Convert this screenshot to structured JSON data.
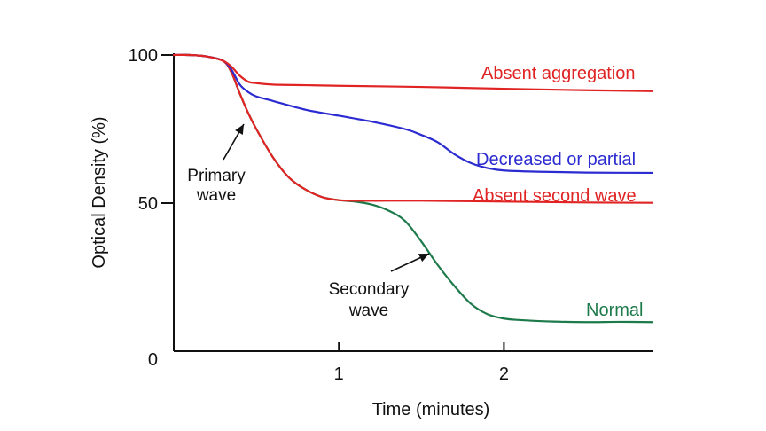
{
  "chart_data": {
    "type": "line",
    "title": "",
    "xlabel": "Time (minutes)",
    "ylabel": "Optical Density (%)",
    "xlim": [
      0,
      2.9
    ],
    "ylim": [
      0,
      100
    ],
    "x_ticks": [
      {
        "value": 1,
        "label": "1"
      },
      {
        "value": 2,
        "label": "2"
      }
    ],
    "y_ticks": [
      {
        "value": 0,
        "label": "0"
      },
      {
        "value": 50,
        "label": "50"
      },
      {
        "value": 100,
        "label": "100"
      }
    ],
    "grid": false,
    "legend": "none",
    "series": [
      {
        "name": "Absent aggregation",
        "color": "#e02424",
        "x": [
          0,
          0.1,
          0.2,
          0.3,
          0.35,
          0.4,
          0.45,
          0.5,
          0.6,
          0.8,
          1.0,
          1.5,
          2.0,
          2.5,
          2.9
        ],
        "y": [
          100,
          100,
          99.5,
          98,
          96,
          93,
          91,
          90.5,
          90,
          89.8,
          89.6,
          89.2,
          88.6,
          88.1,
          87.8
        ]
      },
      {
        "name": "Decreased or partial",
        "color": "#2b2bd1",
        "x": [
          0,
          0.1,
          0.2,
          0.3,
          0.35,
          0.4,
          0.45,
          0.5,
          0.6,
          0.8,
          1.0,
          1.2,
          1.4,
          1.5,
          1.6,
          1.7,
          1.8,
          1.9,
          2.0,
          2.2,
          2.5,
          2.9
        ],
        "y": [
          100,
          100,
          99.5,
          98,
          95,
          90,
          87.5,
          86,
          84.5,
          81.5,
          79.5,
          77.5,
          75,
          73,
          70.5,
          66.5,
          63.5,
          61.8,
          61,
          60.6,
          60.3,
          60.2
        ]
      },
      {
        "name": "Absent second wave",
        "color": "#e02424",
        "x": [
          0,
          0.1,
          0.2,
          0.3,
          0.35,
          0.4,
          0.45,
          0.5,
          0.6,
          0.7,
          0.8,
          0.9,
          1.0,
          1.1,
          1.3,
          1.5,
          2.0,
          2.5,
          2.9
        ],
        "y": [
          100,
          100,
          99.5,
          98,
          94,
          87,
          80.5,
          75,
          65.5,
          58.5,
          54.5,
          52,
          51,
          50.8,
          50.8,
          50.8,
          50.5,
          50.2,
          50.1
        ]
      },
      {
        "name": "Normal",
        "color": "#1d7a4a",
        "x": [
          0,
          0.1,
          0.2,
          0.3,
          0.35,
          0.4,
          0.45,
          0.5,
          0.6,
          0.7,
          0.8,
          0.9,
          1.0,
          1.1,
          1.2,
          1.3,
          1.4,
          1.5,
          1.6,
          1.7,
          1.8,
          1.9,
          2.0,
          2.1,
          2.3,
          2.5,
          2.7,
          2.9
        ],
        "y": [
          100,
          100,
          99.5,
          98,
          94,
          87,
          80.5,
          75,
          65.5,
          58.5,
          54.5,
          52,
          51,
          50.5,
          49.5,
          47.5,
          44,
          37,
          29,
          22,
          16,
          12.5,
          11,
          10.5,
          10,
          9.8,
          9.9,
          9.8
        ]
      }
    ],
    "annotations": [
      {
        "text": "Absent aggregation",
        "color": "#e02424"
      },
      {
        "text": "Decreased or partial",
        "color": "#2b2bd1"
      },
      {
        "text": "Absent second wave",
        "color": "#e02424"
      },
      {
        "text": "Normal",
        "color": "#1d7a4a"
      },
      {
        "text": "Primary",
        "color": "#111111"
      },
      {
        "text": "wave",
        "color": "#111111"
      },
      {
        "text": "Secondary",
        "color": "#111111"
      },
      {
        "text": "wave",
        "color": "#111111"
      }
    ]
  }
}
